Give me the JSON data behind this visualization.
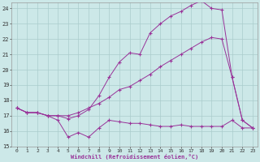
{
  "xlabel": "Windchill (Refroidissement éolien,°C)",
  "bg_color": "#cce8e8",
  "grid_color": "#aacccc",
  "line_color": "#993399",
  "xlim": [
    -0.5,
    23.5
  ],
  "ylim": [
    15,
    24.4
  ],
  "xticks": [
    0,
    1,
    2,
    3,
    4,
    5,
    6,
    7,
    8,
    9,
    10,
    11,
    12,
    13,
    14,
    15,
    16,
    17,
    18,
    19,
    20,
    21,
    22,
    23
  ],
  "yticks": [
    15,
    16,
    17,
    18,
    19,
    20,
    21,
    22,
    23,
    24
  ],
  "line1_x": [
    0,
    1,
    2,
    3,
    4,
    5,
    6,
    7,
    8,
    9,
    10,
    11,
    12,
    13,
    14,
    15,
    16,
    17,
    18,
    19,
    20,
    21,
    22,
    23
  ],
  "line1_y": [
    17.5,
    17.2,
    17.2,
    17.0,
    16.7,
    15.6,
    15.9,
    15.6,
    16.2,
    16.7,
    16.6,
    16.5,
    16.5,
    16.4,
    16.3,
    16.3,
    16.4,
    16.3,
    16.3,
    16.3,
    16.3,
    16.7,
    16.2,
    16.2
  ],
  "line2_x": [
    0,
    1,
    2,
    3,
    4,
    5,
    6,
    7,
    8,
    9,
    10,
    11,
    12,
    13,
    14,
    15,
    16,
    17,
    18,
    19,
    20,
    21,
    22,
    23
  ],
  "line2_y": [
    17.5,
    17.2,
    17.2,
    17.0,
    17.0,
    17.0,
    17.2,
    17.5,
    17.8,
    18.2,
    18.7,
    18.9,
    19.3,
    19.7,
    20.2,
    20.6,
    21.0,
    21.4,
    21.8,
    22.1,
    22.0,
    19.5,
    16.7,
    16.2
  ],
  "line3_x": [
    0,
    1,
    2,
    3,
    4,
    5,
    6,
    7,
    8,
    9,
    10,
    11,
    12,
    13,
    14,
    15,
    16,
    17,
    18,
    19,
    20,
    21,
    22,
    23
  ],
  "line3_y": [
    17.5,
    17.2,
    17.2,
    17.0,
    17.0,
    16.8,
    17.0,
    17.4,
    18.3,
    19.5,
    20.5,
    21.1,
    21.0,
    22.4,
    23.0,
    23.5,
    23.8,
    24.2,
    24.5,
    24.0,
    23.9,
    19.5,
    16.7,
    16.2
  ]
}
